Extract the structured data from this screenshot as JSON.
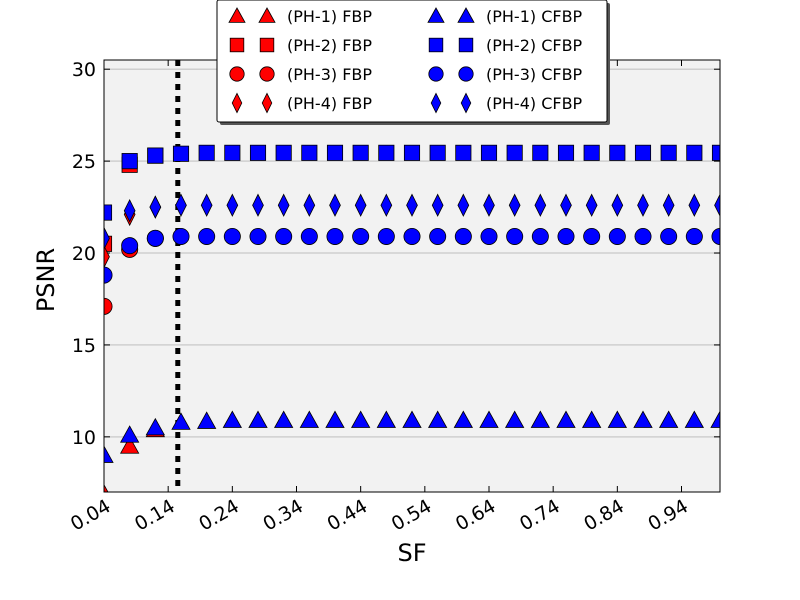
{
  "chart_data": {
    "type": "scatter",
    "xlabel": "SF",
    "ylabel": "PSNR",
    "xlim": [
      0.04,
      1.0
    ],
    "ylim": [
      7,
      30.5
    ],
    "x_ticks": [
      0.04,
      0.14,
      0.24,
      0.34,
      0.44,
      0.54,
      0.64,
      0.74,
      0.84,
      0.94
    ],
    "x_tick_labels": [
      "0.04",
      "0.14",
      "0.24",
      "0.34",
      "0.44",
      "0.54",
      "0.64",
      "0.74",
      "0.84",
      "0.94"
    ],
    "y_ticks": [
      10,
      15,
      20,
      25,
      30
    ],
    "y_tick_labels": [
      "10",
      "15",
      "20",
      "25",
      "30"
    ],
    "grid": "horizontal",
    "background": "#f2f2f2",
    "vertical_line": {
      "x": 0.155,
      "style": "dotted",
      "color": "#000000"
    },
    "legend_position": "top-center",
    "legend_columns": 2,
    "x": [
      0.04,
      0.08,
      0.12,
      0.16,
      0.2,
      0.24,
      0.28,
      0.32,
      0.36,
      0.4,
      0.44,
      0.48,
      0.52,
      0.56,
      0.6,
      0.64,
      0.68,
      0.72,
      0.76,
      0.8,
      0.84,
      0.88,
      0.92,
      0.96,
      1.0
    ],
    "series": [
      {
        "name": "(PH-1) FBP",
        "marker": "triangle",
        "color": "#ff0000",
        "x": [
          0.04,
          0.08,
          0.12
        ],
        "y": [
          6.9,
          9.5,
          10.4
        ]
      },
      {
        "name": "(PH-2) FBP",
        "marker": "square",
        "color": "#ff0000",
        "x": [
          0.04,
          0.08,
          0.12
        ],
        "y": [
          20.5,
          24.8,
          25.3
        ]
      },
      {
        "name": "(PH-3) FBP",
        "marker": "circle",
        "color": "#ff0000",
        "x": [
          0.04,
          0.08,
          0.12
        ],
        "y": [
          17.1,
          20.2,
          20.8
        ]
      },
      {
        "name": "(PH-4) FBP",
        "marker": "diamond",
        "color": "#ff0000",
        "x": [
          0.04,
          0.08,
          0.12
        ],
        "y": [
          19.8,
          22.1,
          22.5
        ]
      },
      {
        "name": "(PH-1) CFBP",
        "marker": "triangle",
        "color": "#0000ff",
        "x": [
          0.04,
          0.08,
          0.12,
          0.16,
          0.2,
          0.24,
          0.28,
          0.32,
          0.36,
          0.4,
          0.44,
          0.48,
          0.52,
          0.56,
          0.6,
          0.64,
          0.68,
          0.72,
          0.76,
          0.8,
          0.84,
          0.88,
          0.92,
          0.96,
          1.0
        ],
        "y": [
          9.0,
          10.1,
          10.5,
          10.8,
          10.85,
          10.9,
          10.9,
          10.9,
          10.9,
          10.9,
          10.9,
          10.9,
          10.9,
          10.9,
          10.9,
          10.9,
          10.9,
          10.9,
          10.9,
          10.9,
          10.9,
          10.9,
          10.9,
          10.9,
          10.9
        ]
      },
      {
        "name": "(PH-2) CFBP",
        "marker": "square",
        "color": "#0000ff",
        "x": [
          0.04,
          0.08,
          0.12,
          0.16,
          0.2,
          0.24,
          0.28,
          0.32,
          0.36,
          0.4,
          0.44,
          0.48,
          0.52,
          0.56,
          0.6,
          0.64,
          0.68,
          0.72,
          0.76,
          0.8,
          0.84,
          0.88,
          0.92,
          0.96,
          1.0
        ],
        "y": [
          22.2,
          25.0,
          25.3,
          25.4,
          25.45,
          25.45,
          25.45,
          25.45,
          25.45,
          25.45,
          25.45,
          25.45,
          25.45,
          25.45,
          25.45,
          25.45,
          25.45,
          25.45,
          25.45,
          25.45,
          25.45,
          25.45,
          25.45,
          25.45,
          25.45
        ]
      },
      {
        "name": "(PH-3) CFBP",
        "marker": "circle",
        "color": "#0000ff",
        "x": [
          0.04,
          0.08,
          0.12,
          0.16,
          0.2,
          0.24,
          0.28,
          0.32,
          0.36,
          0.4,
          0.44,
          0.48,
          0.52,
          0.56,
          0.6,
          0.64,
          0.68,
          0.72,
          0.76,
          0.8,
          0.84,
          0.88,
          0.92,
          0.96,
          1.0
        ],
        "y": [
          18.8,
          20.4,
          20.8,
          20.9,
          20.9,
          20.9,
          20.9,
          20.9,
          20.9,
          20.9,
          20.9,
          20.9,
          20.9,
          20.9,
          20.9,
          20.9,
          20.9,
          20.9,
          20.9,
          20.9,
          20.9,
          20.9,
          20.9,
          20.9,
          20.9
        ]
      },
      {
        "name": "(PH-4) CFBP",
        "marker": "diamond",
        "color": "#0000ff",
        "x": [
          0.04,
          0.08,
          0.12,
          0.16,
          0.2,
          0.24,
          0.28,
          0.32,
          0.36,
          0.4,
          0.44,
          0.48,
          0.52,
          0.56,
          0.6,
          0.64,
          0.68,
          0.72,
          0.76,
          0.8,
          0.84,
          0.88,
          0.92,
          0.96,
          1.0
        ],
        "y": [
          20.8,
          22.3,
          22.5,
          22.6,
          22.6,
          22.6,
          22.6,
          22.6,
          22.6,
          22.6,
          22.6,
          22.6,
          22.6,
          22.6,
          22.6,
          22.6,
          22.6,
          22.6,
          22.6,
          22.6,
          22.6,
          22.6,
          22.6,
          22.6,
          22.6
        ]
      }
    ]
  }
}
